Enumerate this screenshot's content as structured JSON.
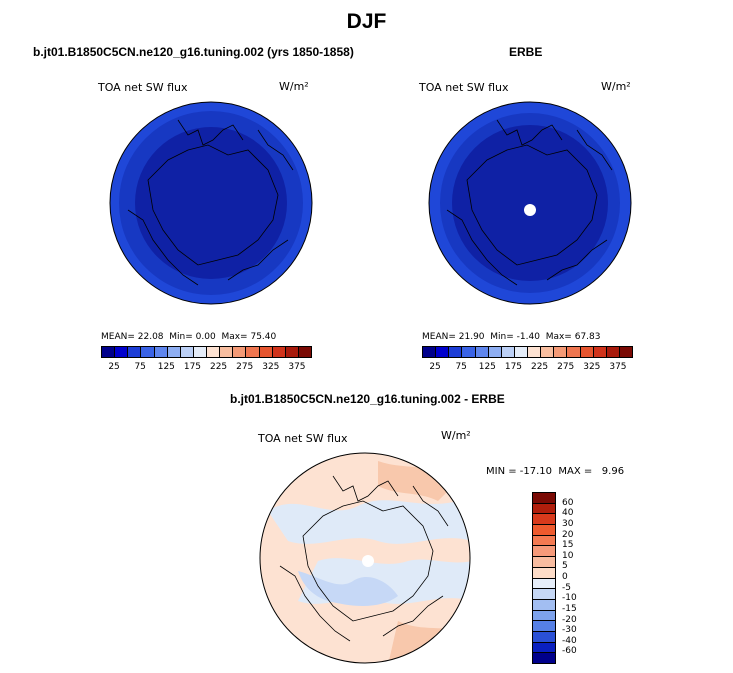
{
  "title": "DJF",
  "panels": [
    {
      "heading": "b.jt01.B1850C5CN.ne120_g16.tuning.002 (yrs 1850-1858)",
      "field_label": "TOA net SW flux",
      "unit": "W/m²",
      "mean_label": "MEAN=",
      "mean": "22.08",
      "min_label": "Min=",
      "min": "0.00",
      "max_label": "Max=",
      "max": "75.40"
    },
    {
      "heading": "ERBE",
      "field_label": "TOA net SW flux",
      "unit": "W/m²",
      "mean_label": "MEAN=",
      "mean": "21.90",
      "min_label": "Min=",
      "min": "-1.40",
      "max_label": "Max=",
      "max": "67.83"
    }
  ],
  "diff_panel": {
    "heading": "b.jt01.B1850C5CN.ne120_g16.tuning.002 - ERBE",
    "field_label": "TOA net SW flux",
    "unit": "W/m²",
    "minmax_text": "MIN = -17.10  MAX =   9.96"
  },
  "colorbar": {
    "tick_labels": [
      "25",
      "75",
      "125",
      "175",
      "225",
      "275",
      "325",
      "375"
    ],
    "colors": [
      "#00008b",
      "#0000cd",
      "#1c3dd6",
      "#3a63e6",
      "#5f86ee",
      "#8eaef2",
      "#bcd0f6",
      "#e4ecf8",
      "#fde2d2",
      "#f8bea0",
      "#f49a76",
      "#ef7650",
      "#e6552f",
      "#d0331b",
      "#a81a0c",
      "#7a0a04"
    ]
  },
  "diff_colorbar": {
    "tick_labels": [
      "60",
      "40",
      "30",
      "20",
      "15",
      "10",
      "5",
      "0",
      "-5",
      "-10",
      "-15",
      "-20",
      "-30",
      "-40",
      "-60"
    ],
    "colors": [
      "#7a0a04",
      "#b01e0c",
      "#d83a1c",
      "#ee5a2e",
      "#f47a52",
      "#f69a7a",
      "#f8bca0",
      "#fddcc8",
      "#e6eefa",
      "#c6d8f6",
      "#a2bef2",
      "#7da2ec",
      "#5680e6",
      "#2a50d6",
      "#0a20c0",
      "#00008b"
    ]
  }
}
